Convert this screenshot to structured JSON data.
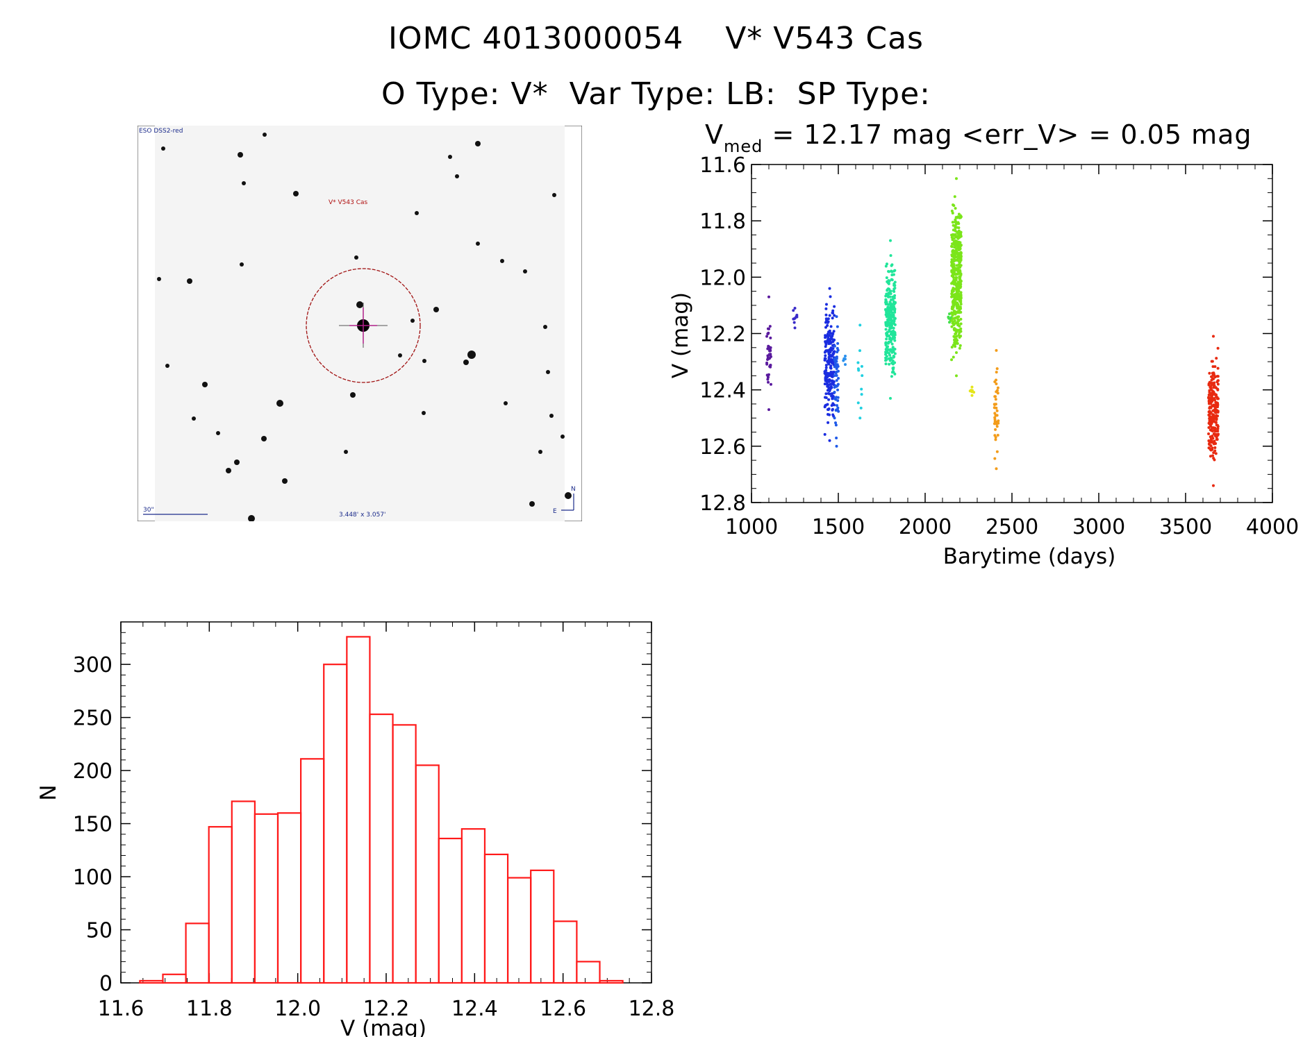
{
  "header": {
    "line1": "IOMC 4013000054    V* V543 Cas",
    "line2": "O Type: V*  Var Type: LB:  SP Type:"
  },
  "finder_chart": {
    "survey_label": "ESO DSS2-red",
    "target_label": "V* V543 Cas",
    "scale_label": "30\"",
    "field_label": "3.448' x 3.057'",
    "north_label": "N",
    "east_label": "E"
  },
  "chart_data": [
    {
      "type": "scatter",
      "title_prefix": "V",
      "title_subscript": "med",
      "title_rest": " = 12.17 mag <err_V> = 0.05 mag",
      "xlabel": "Barytime (days)",
      "ylabel": "V (mag)",
      "xlim": [
        1000,
        4000
      ],
      "ylim": [
        12.8,
        11.6
      ],
      "xticks": [
        "1000",
        "1500",
        "2000",
        "2500",
        "3000",
        "3500",
        "4000"
      ],
      "yticks": [
        "11.6",
        "11.8",
        "12.0",
        "12.2",
        "12.4",
        "12.6",
        "12.8"
      ],
      "y_inverted": true,
      "series": [
        {
          "x": 1100,
          "ymin": 12.07,
          "ymax": 12.47,
          "color": "#5a1a9e",
          "count": 40
        },
        {
          "x": 1250,
          "ymin": 12.11,
          "ymax": 12.18,
          "color": "#3a2bc8",
          "count": 8
        },
        {
          "x": 1450,
          "ymin": 12.04,
          "ymax": 12.58,
          "color": "#1a2de0",
          "count": 220
        },
        {
          "x": 1490,
          "ymin": 12.14,
          "ymax": 12.6,
          "color": "#1f5ae8",
          "count": 50
        },
        {
          "x": 1540,
          "ymin": 12.28,
          "ymax": 12.31,
          "color": "#2a90ee",
          "count": 3
        },
        {
          "x": 1625,
          "ymin": 12.17,
          "ymax": 12.5,
          "color": "#20d0e0",
          "count": 10
        },
        {
          "x": 1800,
          "ymin": 11.87,
          "ymax": 12.43,
          "color": "#21e59a",
          "count": 260
        },
        {
          "x": 2140,
          "ymin": 12.13,
          "ymax": 12.16,
          "color": "#45e04a",
          "count": 6
        },
        {
          "x": 2180,
          "ymin": 11.65,
          "ymax": 12.35,
          "color": "#7be51a",
          "count": 420
        },
        {
          "x": 2270,
          "ymin": 12.39,
          "ymax": 12.42,
          "color": "#e5e51a",
          "count": 6
        },
        {
          "x": 2410,
          "ymin": 12.26,
          "ymax": 12.68,
          "color": "#f39c1a",
          "count": 40
        },
        {
          "x": 3660,
          "ymin": 12.21,
          "ymax": 12.74,
          "color": "#e82a10",
          "count": 230
        }
      ]
    },
    {
      "type": "bar",
      "xlabel": "V (mag)",
      "ylabel": "N",
      "xlim": [
        11.6,
        12.8
      ],
      "ylim": [
        0,
        340
      ],
      "xticks": [
        "11.6",
        "11.8",
        "12.0",
        "12.2",
        "12.4",
        "12.6",
        "12.8"
      ],
      "yticks": [
        "0",
        "50",
        "100",
        "150",
        "200",
        "250",
        "300"
      ],
      "bin_width": 0.052,
      "bin_start": 11.643,
      "values": [
        2,
        8,
        56,
        147,
        171,
        159,
        160,
        211,
        300,
        326,
        253,
        243,
        205,
        136,
        145,
        121,
        99,
        106,
        58,
        20,
        2
      ],
      "color": "#ff1a1a"
    }
  ]
}
